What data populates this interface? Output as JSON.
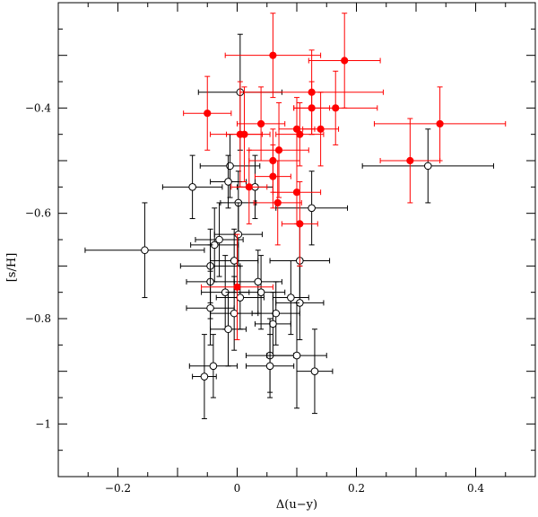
{
  "chart_data": {
    "type": "scatter",
    "title": "",
    "xlabel": "Δ(u−y)",
    "ylabel": "[s/H]",
    "xlim": [
      -0.3,
      0.5
    ],
    "ylim": [
      -1.1,
      -0.2
    ],
    "y_axis_inverted": true,
    "grid": false,
    "x_ticks": [
      -0.2,
      0,
      0.2,
      0.4
    ],
    "x_tick_labels": [
      "−0.2",
      "0",
      "0.2",
      "0.4"
    ],
    "y_ticks": [
      -0.4,
      -0.6,
      -0.8,
      -1.0
    ],
    "y_tick_labels": [
      "−0.4",
      "−0.6",
      "−0.8",
      "−1"
    ],
    "series": [
      {
        "marker": "filled-circle",
        "color": "#ff0000",
        "points": [
          {
            "x": -0.05,
            "y": -0.41,
            "xerr": 0.04,
            "yerr": 0.07
          },
          {
            "x": 0.06,
            "y": -0.3,
            "xerr": 0.08,
            "yerr": 0.08
          },
          {
            "x": 0.18,
            "y": -0.31,
            "xerr": 0.06,
            "yerr": 0.09
          },
          {
            "x": 0.125,
            "y": -0.37,
            "xerr": 0.12,
            "yerr": 0.08
          },
          {
            "x": 0.125,
            "y": -0.4,
            "xerr": 0.03,
            "yerr": 0.05
          },
          {
            "x": 0.165,
            "y": -0.4,
            "xerr": 0.07,
            "yerr": 0.07
          },
          {
            "x": 0.04,
            "y": -0.43,
            "xerr": 0.04,
            "yerr": 0.07
          },
          {
            "x": 0.005,
            "y": -0.45,
            "xerr": 0.05,
            "yerr": 0.1
          },
          {
            "x": 0.012,
            "y": -0.45,
            "xerr": 0.03,
            "yerr": 0.09
          },
          {
            "x": 0.1,
            "y": -0.44,
            "xerr": 0.03,
            "yerr": 0.06
          },
          {
            "x": 0.105,
            "y": -0.45,
            "xerr": 0.04,
            "yerr": 0.06
          },
          {
            "x": 0.14,
            "y": -0.44,
            "xerr": 0.03,
            "yerr": 0.07
          },
          {
            "x": 0.07,
            "y": -0.48,
            "xerr": 0.05,
            "yerr": 0.09
          },
          {
            "x": 0.06,
            "y": -0.5,
            "xerr": 0.04,
            "yerr": 0.06
          },
          {
            "x": 0.06,
            "y": -0.53,
            "xerr": 0.03,
            "yerr": 0.06
          },
          {
            "x": 0.1,
            "y": -0.56,
            "xerr": 0.04,
            "yerr": 0.06
          },
          {
            "x": 0.068,
            "y": -0.58,
            "xerr": 0.04,
            "yerr": 0.08
          },
          {
            "x": 0.02,
            "y": -0.55,
            "xerr": 0.03,
            "yerr": 0.07
          },
          {
            "x": 0.105,
            "y": -0.62,
            "xerr": 0.03,
            "yerr": 0.08
          },
          {
            "x": 0.0,
            "y": -0.74,
            "xerr": 0.06,
            "yerr": 0.1
          },
          {
            "x": 0.29,
            "y": -0.5,
            "xerr": 0.05,
            "yerr": 0.08
          },
          {
            "x": 0.34,
            "y": -0.43,
            "xerr": 0.11,
            "yerr": 0.07
          }
        ]
      },
      {
        "marker": "open-circle",
        "color": "#000000",
        "points": [
          {
            "x": 0.005,
            "y": -0.37,
            "xerr": 0.07,
            "yerr": 0.11
          },
          {
            "x": -0.075,
            "y": -0.55,
            "xerr": 0.05,
            "yerr": 0.06
          },
          {
            "x": -0.012,
            "y": -0.51,
            "xerr": 0.05,
            "yerr": 0.06
          },
          {
            "x": -0.015,
            "y": -0.54,
            "xerr": 0.03,
            "yerr": 0.05
          },
          {
            "x": 0.03,
            "y": -0.55,
            "xerr": 0.03,
            "yerr": 0.06
          },
          {
            "x": 0.002,
            "y": -0.58,
            "xerr": 0.03,
            "yerr": 0.06
          },
          {
            "x": 0.125,
            "y": -0.59,
            "xerr": 0.06,
            "yerr": 0.07
          },
          {
            "x": -0.155,
            "y": -0.67,
            "xerr": 0.1,
            "yerr": 0.09
          },
          {
            "x": 0.32,
            "y": -0.51,
            "xerr": 0.11,
            "yerr": 0.07
          },
          {
            "x": -0.03,
            "y": -0.65,
            "xerr": 0.04,
            "yerr": 0.07
          },
          {
            "x": -0.038,
            "y": -0.66,
            "xerr": 0.04,
            "yerr": 0.07
          },
          {
            "x": 0.002,
            "y": -0.64,
            "xerr": 0.04,
            "yerr": 0.06
          },
          {
            "x": -0.045,
            "y": -0.7,
            "xerr": 0.05,
            "yerr": 0.07
          },
          {
            "x": -0.005,
            "y": -0.69,
            "xerr": 0.04,
            "yerr": 0.06
          },
          {
            "x": -0.045,
            "y": -0.73,
            "xerr": 0.04,
            "yerr": 0.07
          },
          {
            "x": 0.105,
            "y": -0.69,
            "xerr": 0.05,
            "yerr": 0.07
          },
          {
            "x": -0.02,
            "y": -0.75,
            "xerr": 0.04,
            "yerr": 0.07
          },
          {
            "x": 0.04,
            "y": -0.75,
            "xerr": 0.04,
            "yerr": 0.07
          },
          {
            "x": 0.035,
            "y": -0.73,
            "xerr": 0.04,
            "yerr": 0.06
          },
          {
            "x": 0.005,
            "y": -0.76,
            "xerr": 0.04,
            "yerr": 0.06
          },
          {
            "x": 0.09,
            "y": -0.76,
            "xerr": 0.03,
            "yerr": 0.07
          },
          {
            "x": -0.045,
            "y": -0.78,
            "xerr": 0.04,
            "yerr": 0.07
          },
          {
            "x": -0.005,
            "y": -0.79,
            "xerr": 0.04,
            "yerr": 0.07
          },
          {
            "x": 0.065,
            "y": -0.79,
            "xerr": 0.04,
            "yerr": 0.06
          },
          {
            "x": 0.105,
            "y": -0.77,
            "xerr": 0.04,
            "yerr": 0.07
          },
          {
            "x": 0.06,
            "y": -0.81,
            "xerr": 0.03,
            "yerr": 0.06
          },
          {
            "x": -0.015,
            "y": -0.82,
            "xerr": 0.03,
            "yerr": 0.07
          },
          {
            "x": 0.055,
            "y": -0.87,
            "xerr": 0.04,
            "yerr": 0.07
          },
          {
            "x": 0.1,
            "y": -0.87,
            "xerr": 0.05,
            "yerr": 0.1
          },
          {
            "x": -0.04,
            "y": -0.89,
            "xerr": 0.04,
            "yerr": 0.06
          },
          {
            "x": 0.055,
            "y": -0.89,
            "xerr": 0.04,
            "yerr": 0.06
          },
          {
            "x": -0.055,
            "y": -0.91,
            "xerr": 0.02,
            "yerr": 0.08
          },
          {
            "x": 0.13,
            "y": -0.9,
            "xerr": 0.03,
            "yerr": 0.08
          }
        ]
      }
    ]
  }
}
